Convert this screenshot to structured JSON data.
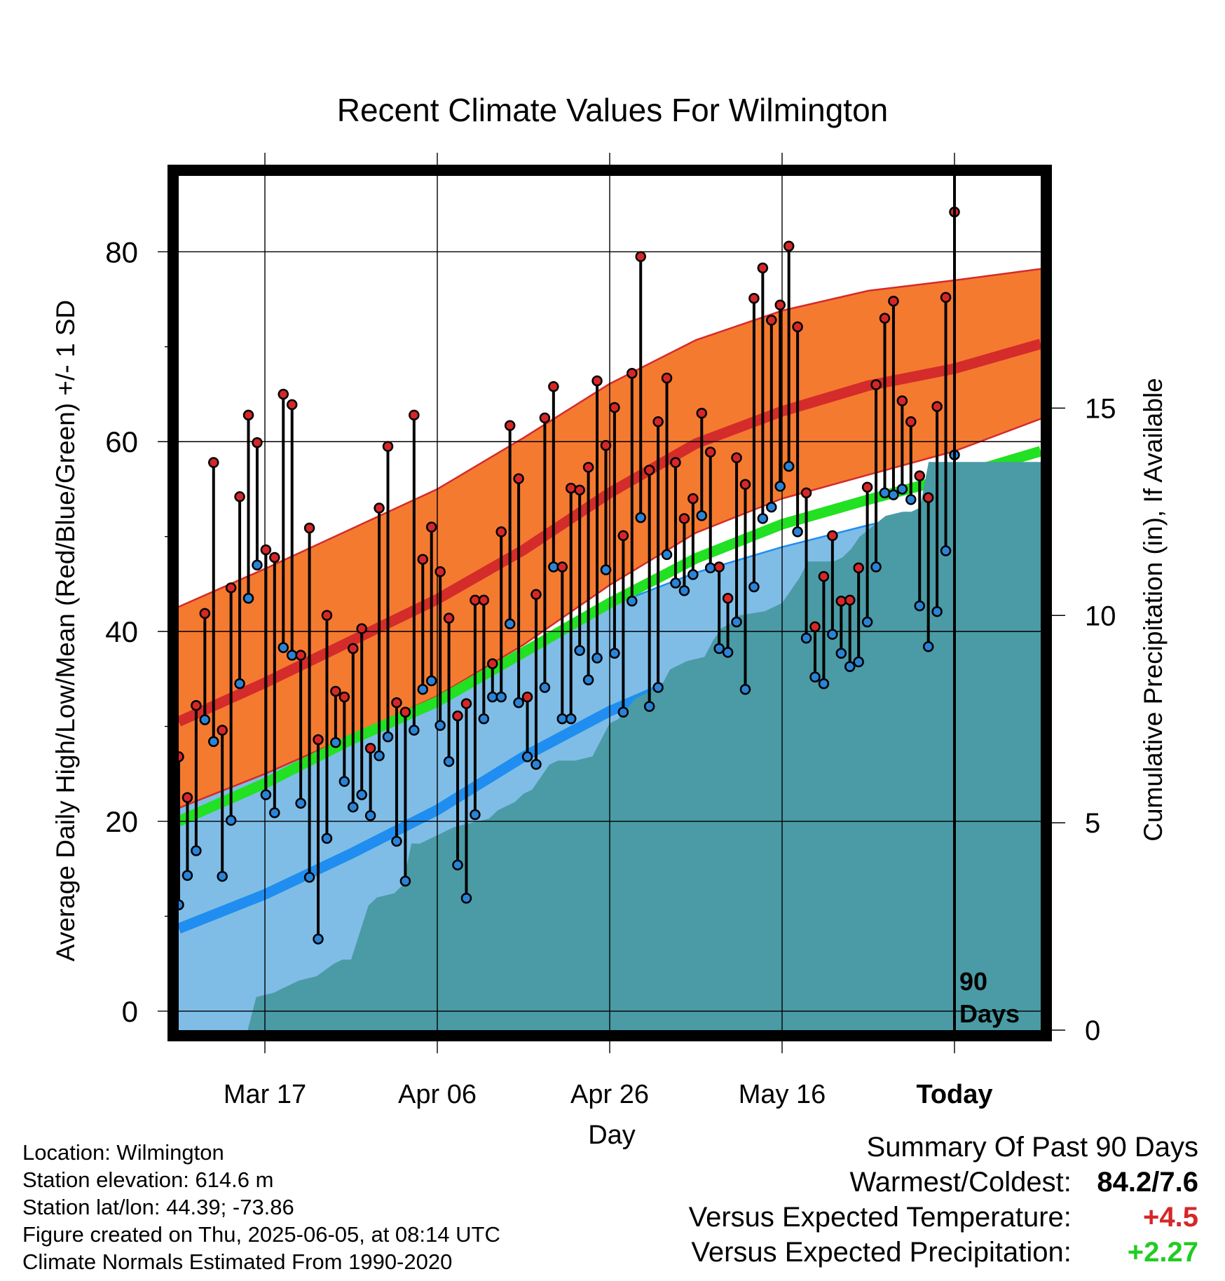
{
  "colors": {
    "high_band": "#f47a30",
    "high_band_edge": "#d42b2b",
    "high_mean": "#d42b2b",
    "low_band": "#7fbde6",
    "low_band_edge": "#1f8ef0",
    "low_mean": "#1f8ef0",
    "mean_line": "#22e022",
    "precip_fill": "#4a9ba5",
    "high_marker": "#d62728",
    "low_marker": "#2b83d8",
    "frame": "#000000"
  },
  "chart_data": {
    "type": "line",
    "title": "Recent Climate Values For Wilmington",
    "xlabel": "Day",
    "ylabel": "Average Daily High/Low/Mean (Red/Blue/Green) +/- 1 SD",
    "y2label": "Cumulative Precipitation (in), If Available",
    "xlim": [
      0,
      100
    ],
    "ylim": [
      -2,
      88
    ],
    "y2lim": [
      0,
      20.6
    ],
    "xticks": [
      {
        "x": 10,
        "label": "Mar 17"
      },
      {
        "x": 30,
        "label": "Apr 06"
      },
      {
        "x": 50,
        "label": "Apr 26"
      },
      {
        "x": 70,
        "label": "May 16"
      },
      {
        "x": 90,
        "label": "Today"
      }
    ],
    "yticks": [
      0,
      20,
      40,
      60,
      80
    ],
    "y2ticks": [
      0,
      5,
      10,
      15
    ],
    "today_x": 90,
    "today_label": [
      "90",
      "Days"
    ],
    "normal_x": [
      0,
      10,
      20,
      30,
      40,
      50,
      60,
      70,
      80,
      90,
      100
    ],
    "normal_high_mean": [
      30.5,
      34.6,
      39.0,
      43.4,
      48.6,
      54.6,
      59.8,
      63.2,
      65.9,
      67.7,
      70.3
    ],
    "normal_high_upper": [
      42.6,
      46.6,
      50.8,
      55.0,
      60.4,
      66.1,
      70.7,
      73.8,
      75.9,
      77.0,
      78.2
    ],
    "normal_high_lower": [
      21.4,
      25.0,
      29.0,
      33.2,
      38.6,
      44.9,
      50.4,
      54.0,
      56.5,
      59.0,
      62.4
    ],
    "normal_mean": [
      20.0,
      24.0,
      28.6,
      32.6,
      37.8,
      43.0,
      47.7,
      51.3,
      53.9,
      56.3,
      59.0
    ],
    "normal_low_mean": [
      8.7,
      12.3,
      16.6,
      21.2,
      26.8,
      31.6,
      35.5,
      39.1,
      41.9,
      44.6,
      48.0
    ],
    "normal_low_upper": [
      23.0,
      25.5,
      28.6,
      32.6,
      37.9,
      42.7,
      46.2,
      48.9,
      51.2,
      53.2,
      55.3
    ],
    "normal_low_lower": [
      -5.2,
      -2.5,
      3.6,
      10.3,
      16.0,
      20.6,
      25.2,
      29.2,
      32.0,
      35.0,
      41.6
    ],
    "high_obs": [
      26.8,
      22.5,
      32.2,
      41.9,
      57.8,
      29.6,
      44.6,
      54.2,
      62.8,
      59.9,
      48.6,
      47.8,
      65.0,
      63.9,
      37.5,
      50.9,
      28.6,
      41.7,
      33.7,
      33.1,
      38.2,
      40.3,
      27.7,
      53.0,
      59.5,
      32.5,
      31.5,
      62.8,
      47.6,
      51.0,
      46.3,
      41.4,
      31.1,
      32.4,
      43.3,
      43.3,
      36.6,
      50.5,
      61.7,
      56.1,
      33.1,
      43.9,
      62.5,
      65.8,
      46.8,
      55.1,
      54.9,
      57.3,
      66.4,
      59.6,
      63.6,
      50.1,
      67.2,
      79.5,
      57.0,
      62.1,
      66.7,
      57.8,
      51.9,
      54.0,
      63.0,
      58.9,
      46.8,
      43.5,
      58.3,
      55.5,
      75.1,
      78.3,
      72.8,
      74.4,
      80.6,
      72.1,
      54.6,
      40.5,
      45.8,
      50.1,
      43.2,
      43.3,
      46.7,
      55.2,
      66.0,
      73.0,
      74.8,
      64.3,
      62.1,
      56.4,
      54.1,
      63.7,
      75.2,
      84.2
    ],
    "low_obs": [
      11.2,
      14.3,
      16.9,
      30.7,
      28.4,
      14.2,
      20.1,
      34.5,
      43.5,
      47.0,
      22.8,
      20.9,
      38.3,
      37.5,
      21.9,
      14.1,
      7.6,
      18.2,
      28.3,
      24.2,
      21.5,
      22.8,
      20.6,
      26.9,
      28.9,
      17.9,
      13.7,
      29.6,
      33.9,
      34.8,
      30.1,
      26.3,
      15.4,
      11.9,
      20.7,
      30.8,
      33.1,
      33.1,
      40.8,
      32.5,
      26.8,
      26.0,
      34.1,
      46.8,
      30.8,
      30.8,
      38.0,
      34.9,
      37.2,
      46.5,
      37.7,
      31.5,
      43.2,
      52.0,
      32.1,
      34.1,
      48.1,
      45.1,
      44.3,
      46.0,
      52.2,
      46.7,
      38.2,
      37.8,
      41.0,
      33.9,
      44.7,
      51.9,
      53.1,
      55.3,
      57.4,
      50.5,
      39.3,
      35.2,
      34.5,
      39.7,
      37.7,
      36.3,
      36.8,
      41.0,
      46.8,
      54.6,
      54.4,
      55.0,
      53.9,
      42.7,
      38.4,
      42.1,
      48.5,
      58.6
    ],
    "precip_x": [
      8,
      9,
      11,
      12,
      14,
      16,
      18,
      19,
      20,
      22,
      23,
      25,
      26,
      27,
      28,
      32,
      34,
      36,
      37,
      39,
      40,
      41,
      43,
      44,
      46,
      48,
      49,
      50,
      51,
      53,
      54,
      56,
      57,
      59,
      61,
      62,
      63,
      64,
      65,
      68,
      70,
      72,
      73,
      76,
      77,
      78,
      79,
      82,
      84,
      85,
      86,
      87,
      90,
      100
    ],
    "precip_cum": [
      0.0,
      0.8,
      0.9,
      1.0,
      1.2,
      1.3,
      1.6,
      1.7,
      1.7,
      3.0,
      3.2,
      3.3,
      3.5,
      4.5,
      4.5,
      4.9,
      5.0,
      5.1,
      5.3,
      5.5,
      5.7,
      5.8,
      6.4,
      6.5,
      6.5,
      6.6,
      7.0,
      7.4,
      7.5,
      8.0,
      8.1,
      8.3,
      8.7,
      8.9,
      9.0,
      9.4,
      9.7,
      9.8,
      10.0,
      10.1,
      10.3,
      10.9,
      11.3,
      11.3,
      11.4,
      11.6,
      11.9,
      12.4,
      12.5,
      12.5,
      12.6,
      13.7,
      13.7,
      13.7
    ]
  },
  "info": {
    "location": "Location: Wilmington",
    "elevation": "Station elevation: 614.6 m",
    "latlon": "Station lat/lon: 44.39; -73.86",
    "created": "Figure created on Thu, 2025-06-05, at 08:14 UTC",
    "normals": "Climate Normals Estimated From 1990-2020"
  },
  "summary": {
    "heading": "Summary Of Past 90 Days",
    "warmest_label": "Warmest/Coldest:",
    "warmest_value": "84.2/7.6",
    "temp_label": "Versus Expected Temperature:",
    "temp_value": "+4.5",
    "precip_label": "Versus Expected Precipitation:",
    "precip_value": "+2.27"
  }
}
